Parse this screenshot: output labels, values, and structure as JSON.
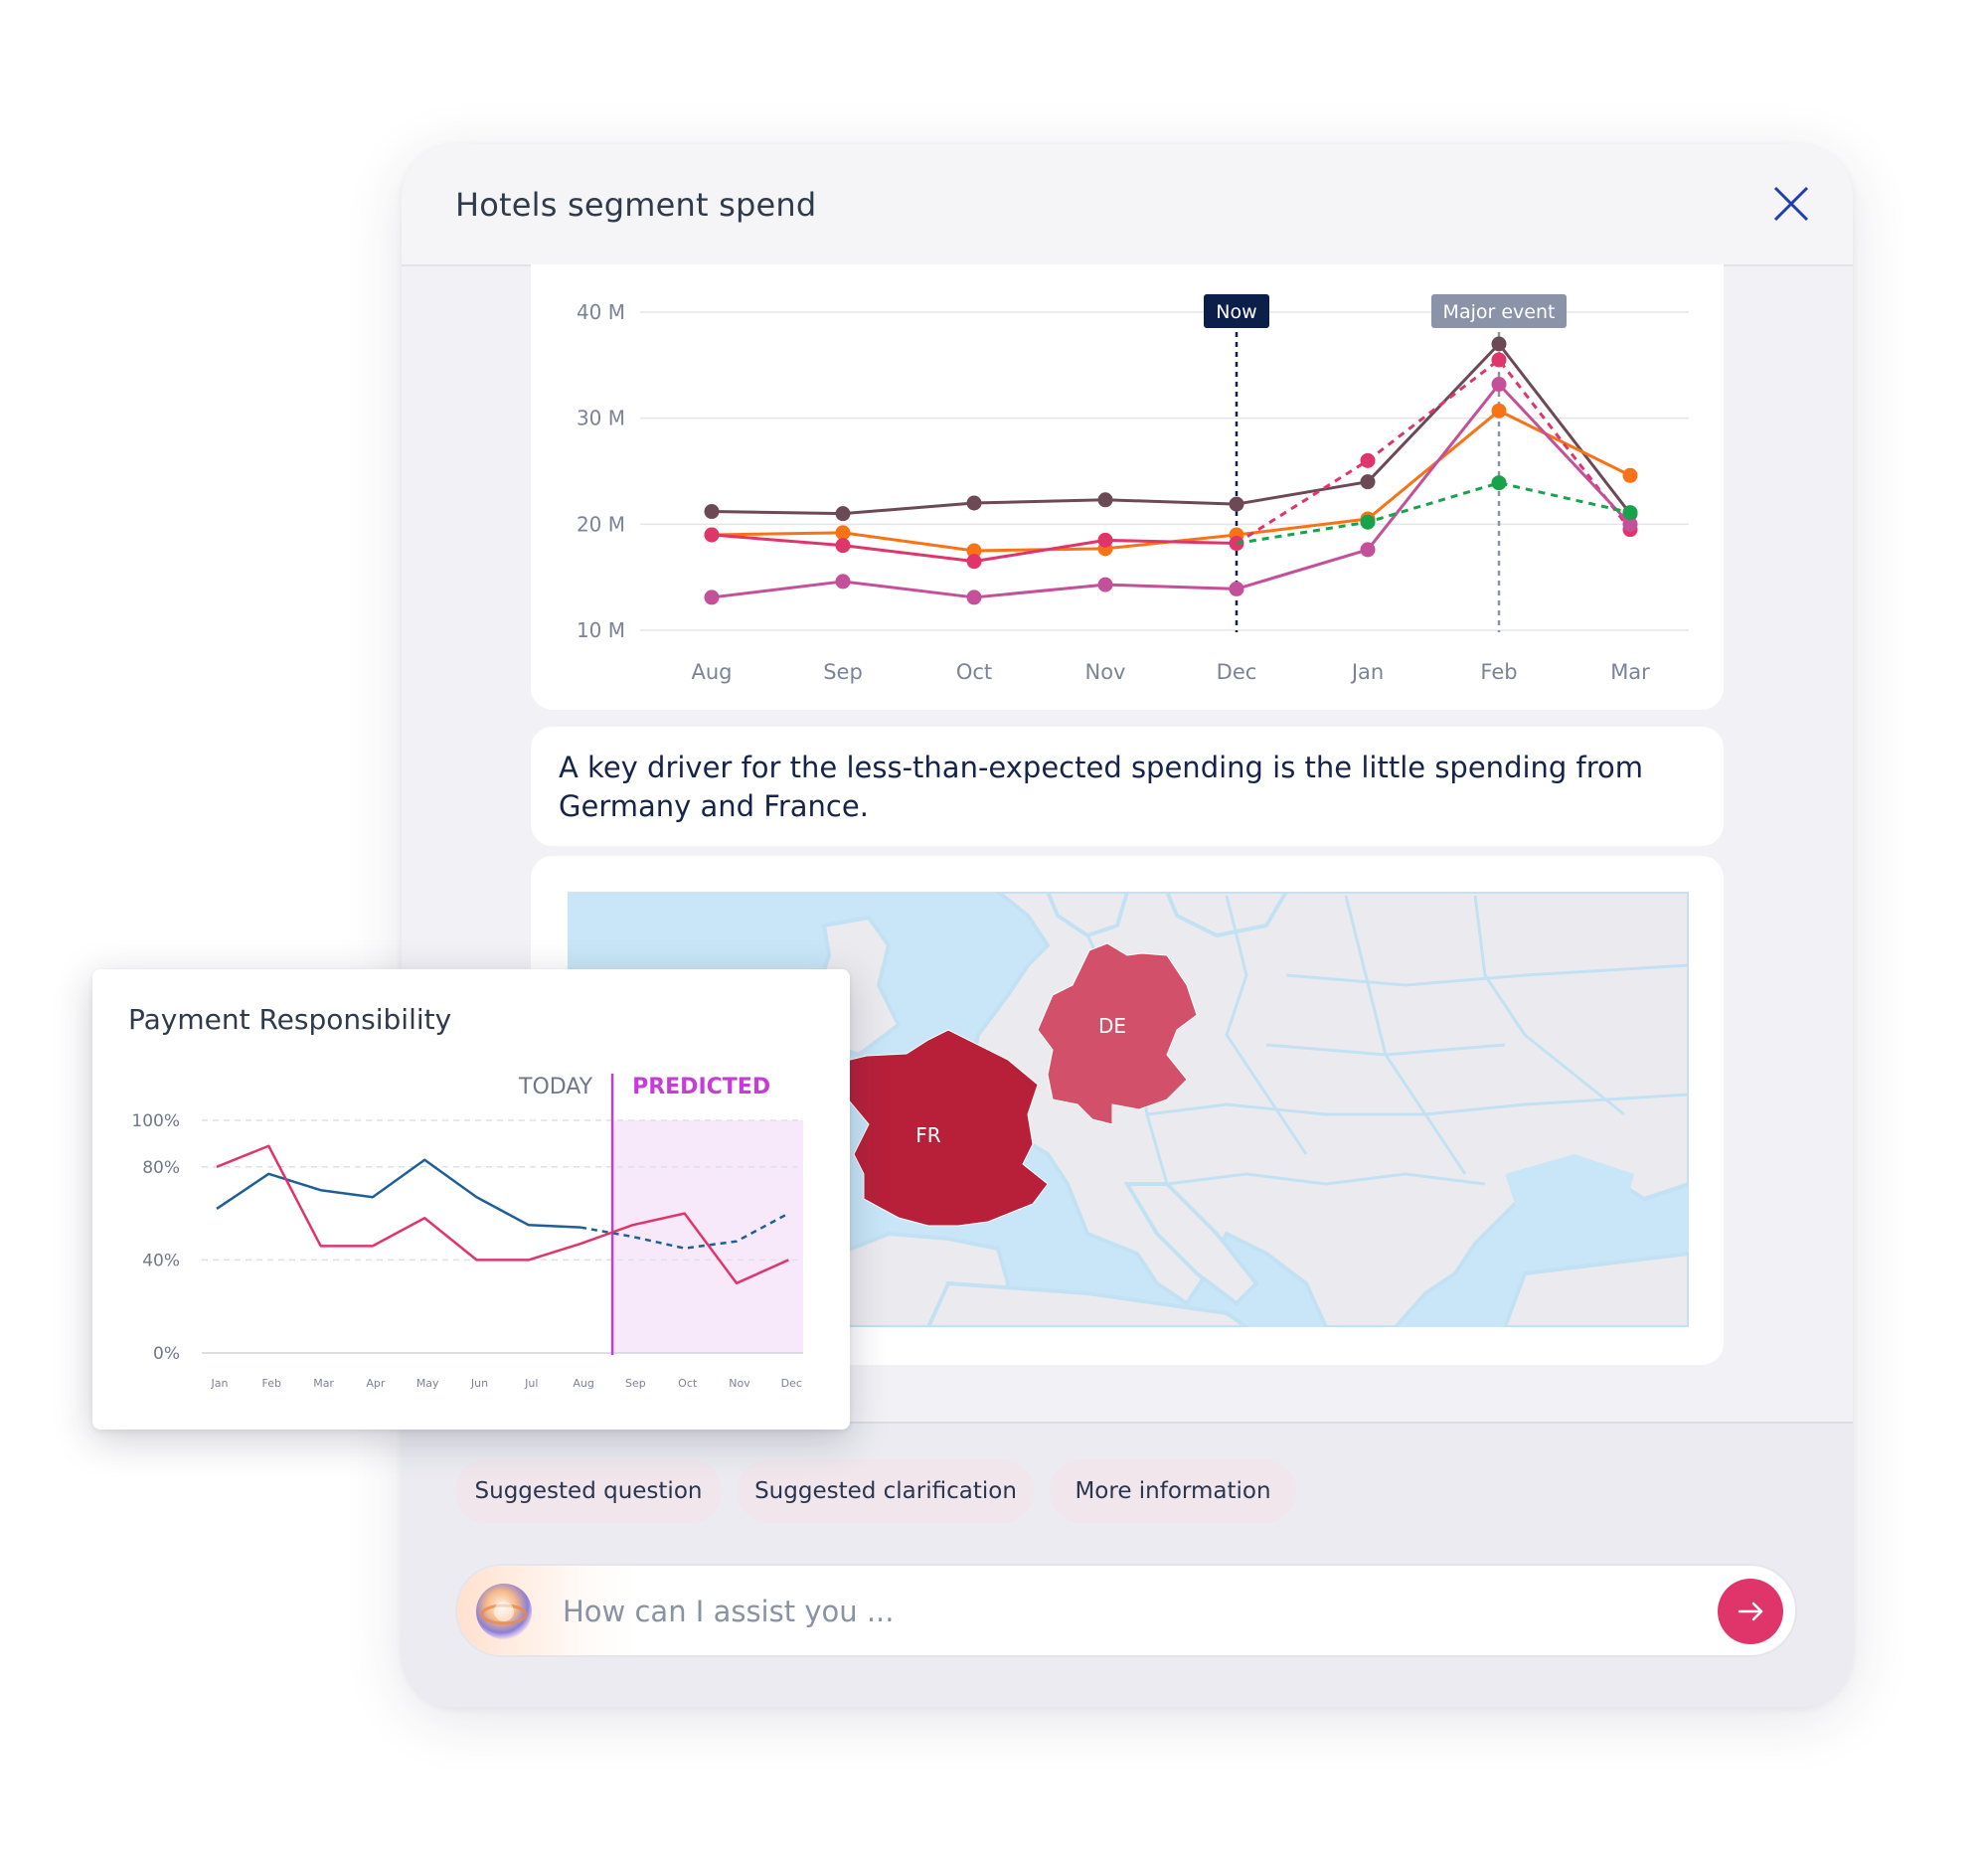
{
  "panel": {
    "title": "Hotels segment spend",
    "close_icon": "close-icon"
  },
  "main_chart": {
    "markers": {
      "now": "Now",
      "major_event": "Major event"
    }
  },
  "message": {
    "text": "A key driver for the less-than-expected spending is the little spending from Germany and France."
  },
  "map": {
    "labels": {
      "fr": "FR",
      "de": "DE"
    },
    "colors": {
      "fr": "#b8203a",
      "de": "#d2506a",
      "water": "#c8e6f7",
      "land": "#ebebef"
    }
  },
  "chips": [
    {
      "label": "Suggested question"
    },
    {
      "label": "Suggested clarification"
    },
    {
      "label": "More information"
    }
  ],
  "input": {
    "placeholder": "How can I assist you ...",
    "avatar_icon": "assistant-orb-icon",
    "send_icon": "arrow-right-icon"
  },
  "side_card": {
    "title": "Payment Responsibility"
  },
  "chart_data": [
    {
      "type": "line",
      "categories": [
        "Aug",
        "Sep",
        "Oct",
        "Nov",
        "Dec",
        "Jan",
        "Feb",
        "Mar"
      ],
      "y_ticks": [
        "40 M",
        "30 M",
        "20 M",
        "10 M"
      ],
      "ylim": [
        10,
        40
      ],
      "grid": true,
      "annotations": [
        {
          "label": "Now",
          "at": "Dec"
        },
        {
          "label": "Major event",
          "at": "Feb"
        }
      ],
      "series": [
        {
          "color": "#6b4a55",
          "values": [
            21.2,
            21.0,
            22.0,
            22.3,
            21.9,
            24.0,
            37.0,
            21.0
          ]
        },
        {
          "color": "#f97316",
          "values": [
            19.0,
            19.2,
            17.5,
            17.7,
            19.0,
            20.5,
            30.7,
            24.6
          ]
        },
        {
          "color": "#e0356a",
          "values": [
            19.0,
            18.0,
            16.5,
            18.5,
            18.2,
            null,
            null,
            null
          ]
        },
        {
          "color": "#e0356a",
          "dashed": true,
          "values": [
            null,
            null,
            null,
            null,
            18.2,
            26.0,
            35.5,
            19.5
          ]
        },
        {
          "color": "#c4509a",
          "values": [
            13.1,
            14.6,
            13.1,
            14.3,
            13.9,
            17.6,
            33.2,
            20.0
          ]
        },
        {
          "color": "#16a34a",
          "dashed": true,
          "values": [
            null,
            null,
            null,
            null,
            18.2,
            20.2,
            23.9,
            21.1
          ]
        }
      ]
    },
    {
      "type": "line",
      "title": "Payment Responsibility",
      "categories": [
        "Jan",
        "Feb",
        "Mar",
        "Apr",
        "May",
        "Jun",
        "Jul",
        "Aug",
        "Sep",
        "Oct",
        "Nov",
        "Dec"
      ],
      "y_ticks": [
        "100%",
        "80%",
        "40%",
        "0%"
      ],
      "ylim": [
        0,
        100
      ],
      "labels": {
        "today": "TODAY",
        "predicted": "PREDICTED"
      },
      "colors": {
        "predicted": "#c53cd8",
        "predicted_band": "#f8e9fa"
      },
      "series": [
        {
          "color": "#1f5f99",
          "values": [
            62,
            77,
            70,
            67,
            83,
            67,
            55,
            54,
            50,
            45,
            48,
            60
          ],
          "dashed_from": "Aug"
        },
        {
          "color": "#e0356a",
          "values": [
            80,
            89,
            46,
            46,
            58,
            40,
            40,
            47,
            55,
            60,
            30,
            40
          ]
        }
      ]
    }
  ]
}
